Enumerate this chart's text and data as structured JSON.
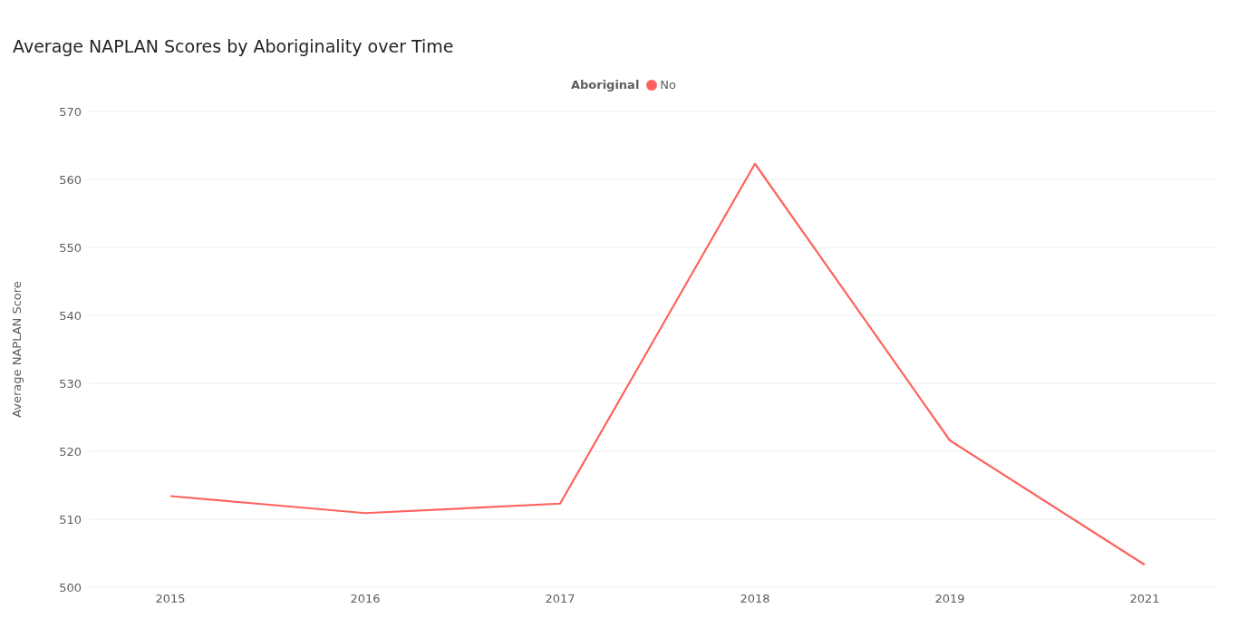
{
  "chart_data": {
    "type": "line",
    "title": "Average NAPLAN Scores by Aboriginality over Time",
    "ylabel": "Average NAPLAN Score",
    "legend_title": "Aboriginal",
    "categories": [
      "2015",
      "2016",
      "2017",
      "2018",
      "2019",
      "2021"
    ],
    "series": [
      {
        "name": "No",
        "color": "#fd625e",
        "values": [
          513.4,
          510.9,
          512.3,
          562.3,
          521.6,
          503.3
        ]
      }
    ],
    "ylim": [
      500,
      570
    ],
    "yticks": [
      500,
      510,
      520,
      530,
      540,
      550,
      560,
      570
    ],
    "grid": "y",
    "legend": "top",
    "marker": "none"
  }
}
